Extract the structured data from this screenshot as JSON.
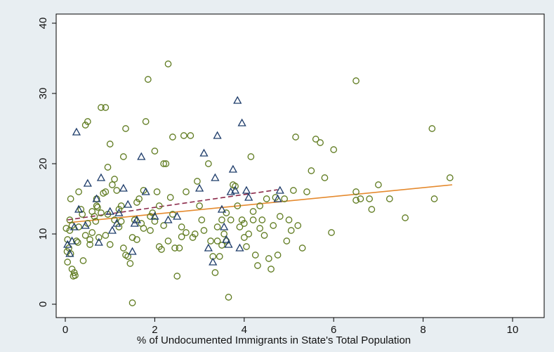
{
  "chart_data": {
    "type": "scatter",
    "title": "",
    "xlabel": "% of Undocumented Immigrants in State's Total Population",
    "ylabel": "",
    "xlim": [
      0,
      10.8
    ],
    "ylim": [
      -0.5,
      40
    ],
    "xticks": [
      "0",
      "2",
      "4",
      "6",
      "8",
      "10"
    ],
    "yticks": [
      "0",
      "10",
      "20",
      "30",
      "40"
    ],
    "grid": false,
    "legend": "none",
    "colors": {
      "plot_background": "#ffffff",
      "outer_background": "#e8eef2",
      "circle_series": "#5e7a1e",
      "triangle_series": "#1f3d6b",
      "fit_line": "#e58a2e",
      "dashed_fit": "#8b2a4a"
    },
    "series": [
      {
        "marker": "circle",
        "points": [
          [
            0.05,
            9.2
          ],
          [
            0.08,
            8.0
          ],
          [
            0.1,
            10.5
          ],
          [
            0.12,
            7.2
          ],
          [
            0.05,
            6.0
          ],
          [
            0.15,
            5.0
          ],
          [
            0.2,
            4.5
          ],
          [
            0.18,
            4.0
          ],
          [
            0.22,
            4.1
          ],
          [
            0.1,
            12.0
          ],
          [
            0.12,
            15.0
          ],
          [
            0.3,
            11.0
          ],
          [
            0.25,
            9.0
          ],
          [
            0.35,
            13.5
          ],
          [
            0.28,
            8.8
          ],
          [
            0.4,
            6.2
          ],
          [
            0.45,
            9.8
          ],
          [
            0.5,
            11.5
          ],
          [
            0.55,
            8.5
          ],
          [
            0.6,
            10.2
          ],
          [
            0.65,
            12.5
          ],
          [
            0.7,
            14.0
          ],
          [
            0.75,
            9.5
          ],
          [
            0.8,
            13.0
          ],
          [
            0.85,
            15.8
          ],
          [
            0.9,
            16.0
          ],
          [
            0.95,
            19.5
          ],
          [
            1.0,
            22.8
          ],
          [
            0.8,
            28.0
          ],
          [
            0.9,
            28.0
          ],
          [
            0.45,
            25.5
          ],
          [
            0.5,
            26.0
          ],
          [
            0.7,
            15.0
          ],
          [
            1.05,
            17.0
          ],
          [
            1.1,
            17.8
          ],
          [
            1.15,
            16.2
          ],
          [
            1.2,
            13.5
          ],
          [
            1.25,
            14.0
          ],
          [
            1.3,
            21.0
          ],
          [
            1.35,
            25.0
          ],
          [
            1.1,
            12.0
          ],
          [
            1.2,
            11.0
          ],
          [
            1.3,
            8.0
          ],
          [
            1.35,
            7.0
          ],
          [
            1.4,
            6.8
          ],
          [
            1.45,
            5.8
          ],
          [
            1.5,
            9.5
          ],
          [
            1.5,
            0.2
          ],
          [
            1.55,
            12.0
          ],
          [
            1.6,
            14.5
          ],
          [
            1.65,
            15.0
          ],
          [
            1.7,
            11.5
          ],
          [
            1.75,
            16.2
          ],
          [
            1.8,
            26.0
          ],
          [
            1.85,
            32.0
          ],
          [
            1.9,
            10.5
          ],
          [
            1.95,
            13.0
          ],
          [
            2.0,
            21.8
          ],
          [
            2.05,
            16.0
          ],
          [
            2.1,
            14.0
          ],
          [
            2.1,
            8.2
          ],
          [
            2.15,
            7.8
          ],
          [
            2.2,
            20.0
          ],
          [
            2.25,
            20.0
          ],
          [
            2.3,
            34.2
          ],
          [
            2.3,
            9.0
          ],
          [
            2.35,
            15.2
          ],
          [
            2.4,
            23.8
          ],
          [
            2.45,
            8.0
          ],
          [
            2.5,
            4.0
          ],
          [
            2.55,
            8.0
          ],
          [
            2.6,
            11.0
          ],
          [
            2.65,
            24.0
          ],
          [
            2.7,
            16.0
          ],
          [
            2.8,
            24.0
          ],
          [
            2.85,
            9.5
          ],
          [
            2.9,
            10.0
          ],
          [
            2.95,
            17.5
          ],
          [
            3.0,
            14.0
          ],
          [
            3.2,
            20.0
          ],
          [
            3.3,
            6.8
          ],
          [
            3.35,
            4.5
          ],
          [
            3.4,
            9.0
          ],
          [
            3.45,
            6.8
          ],
          [
            3.5,
            12.0
          ],
          [
            3.55,
            10.0
          ],
          [
            3.6,
            9.0
          ],
          [
            3.65,
            1.0
          ],
          [
            3.7,
            12.0
          ],
          [
            3.75,
            17.0
          ],
          [
            3.8,
            16.8
          ],
          [
            3.85,
            14.0
          ],
          [
            3.9,
            11.0
          ],
          [
            3.95,
            12.0
          ],
          [
            4.0,
            9.5
          ],
          [
            4.05,
            8.2
          ],
          [
            4.1,
            10.0
          ],
          [
            4.15,
            21.0
          ],
          [
            4.2,
            12.0
          ],
          [
            4.25,
            7.0
          ],
          [
            4.3,
            5.5
          ],
          [
            4.35,
            14.0
          ],
          [
            4.4,
            12.0
          ],
          [
            4.5,
            15.0
          ],
          [
            4.55,
            6.5
          ],
          [
            4.6,
            5.0
          ],
          [
            4.65,
            11.2
          ],
          [
            4.7,
            15.2
          ],
          [
            4.75,
            7.0
          ],
          [
            4.8,
            12.5
          ],
          [
            4.9,
            15.0
          ],
          [
            4.95,
            9.0
          ],
          [
            5.0,
            12.0
          ],
          [
            5.05,
            10.5
          ],
          [
            5.1,
            16.2
          ],
          [
            5.15,
            23.8
          ],
          [
            5.2,
            11.2
          ],
          [
            5.3,
            8.0
          ],
          [
            5.4,
            16.0
          ],
          [
            5.5,
            19.0
          ],
          [
            5.6,
            23.5
          ],
          [
            5.7,
            23.0
          ],
          [
            5.8,
            18.0
          ],
          [
            5.95,
            10.2
          ],
          [
            6.0,
            22.0
          ],
          [
            6.5,
            31.8
          ],
          [
            6.5,
            16.0
          ],
          [
            6.5,
            14.8
          ],
          [
            6.6,
            15.0
          ],
          [
            6.8,
            15.0
          ],
          [
            6.85,
            13.5
          ],
          [
            7.0,
            17.0
          ],
          [
            7.25,
            15.0
          ],
          [
            7.6,
            12.3
          ],
          [
            8.2,
            25.0
          ],
          [
            8.25,
            15.0
          ],
          [
            8.6,
            18.0
          ],
          [
            0.02,
            10.8
          ],
          [
            0.04,
            7.5
          ],
          [
            0.3,
            16.0
          ],
          [
            0.38,
            12.8
          ],
          [
            0.6,
            13.2
          ],
          [
            0.9,
            9.8
          ],
          [
            1.0,
            8.5
          ],
          [
            1.6,
            9.2
          ],
          [
            1.75,
            10.8
          ],
          [
            2.0,
            11.8
          ],
          [
            2.4,
            12.8
          ],
          [
            2.6,
            9.6
          ],
          [
            3.1,
            10.5
          ],
          [
            3.25,
            9.0
          ],
          [
            3.5,
            8.4
          ],
          [
            3.6,
            13.0
          ],
          [
            4.0,
            11.5
          ],
          [
            4.2,
            13.2
          ],
          [
            4.45,
            9.8
          ],
          [
            0.15,
            11.2
          ],
          [
            0.55,
            9.2
          ],
          [
            1.25,
            11.8
          ],
          [
            1.9,
            12.5
          ],
          [
            2.2,
            11.2
          ],
          [
            2.7,
            10.2
          ],
          [
            3.05,
            12.0
          ],
          [
            3.4,
            11.0
          ],
          [
            4.35,
            10.8
          ],
          [
            0.68,
            11.8
          ],
          [
            0.72,
            13.8
          ],
          [
            0.95,
            12.8
          ]
        ]
      },
      {
        "marker": "triangle",
        "points": [
          [
            0.05,
            8.5
          ],
          [
            0.1,
            7.2
          ],
          [
            0.15,
            9.0
          ],
          [
            0.2,
            11.0
          ],
          [
            0.25,
            24.5
          ],
          [
            0.3,
            13.5
          ],
          [
            0.45,
            11.2
          ],
          [
            0.5,
            17.2
          ],
          [
            0.7,
            15.0
          ],
          [
            0.75,
            8.8
          ],
          [
            0.8,
            18.0
          ],
          [
            1.0,
            13.2
          ],
          [
            1.05,
            10.5
          ],
          [
            1.15,
            11.5
          ],
          [
            1.2,
            13.0
          ],
          [
            1.3,
            16.5
          ],
          [
            1.4,
            14.2
          ],
          [
            1.5,
            7.5
          ],
          [
            1.55,
            11.5
          ],
          [
            1.6,
            12.0
          ],
          [
            1.7,
            21.0
          ],
          [
            1.8,
            16.0
          ],
          [
            2.0,
            12.5
          ],
          [
            2.3,
            12.0
          ],
          [
            2.5,
            12.5
          ],
          [
            3.0,
            16.5
          ],
          [
            3.1,
            21.5
          ],
          [
            3.2,
            8.0
          ],
          [
            3.3,
            6.0
          ],
          [
            3.35,
            18.0
          ],
          [
            3.4,
            24.0
          ],
          [
            3.5,
            13.5
          ],
          [
            3.55,
            11.0
          ],
          [
            3.6,
            9.2
          ],
          [
            3.65,
            8.5
          ],
          [
            3.7,
            16.0
          ],
          [
            3.75,
            19.2
          ],
          [
            3.8,
            16.2
          ],
          [
            3.85,
            29.0
          ],
          [
            3.9,
            8.0
          ],
          [
            3.95,
            25.8
          ],
          [
            4.05,
            16.2
          ],
          [
            4.1,
            15.2
          ],
          [
            4.75,
            15.0
          ],
          [
            4.8,
            16.2
          ]
        ]
      }
    ],
    "fit_lines": [
      {
        "style": "solid",
        "x": [
          0.05,
          8.65
        ],
        "y": [
          11.6,
          17.0
        ]
      },
      {
        "style": "dashed",
        "x": [
          0.05,
          4.75
        ],
        "y": [
          12.0,
          16.3
        ]
      }
    ]
  }
}
